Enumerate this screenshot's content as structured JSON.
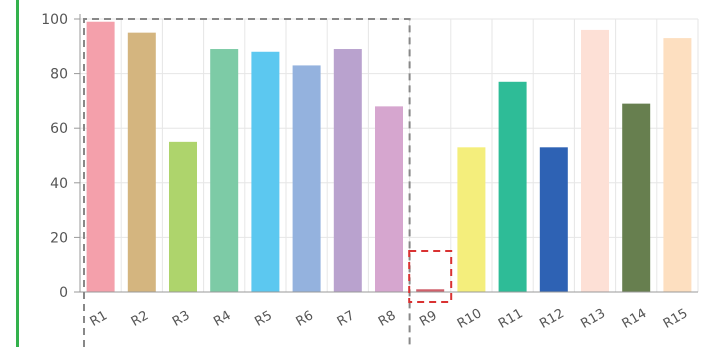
{
  "chart_data": {
    "type": "bar",
    "title": "",
    "xlabel": "",
    "ylabel": "",
    "categories": [
      "R1",
      "R2",
      "R3",
      "R4",
      "R5",
      "R6",
      "R7",
      "R8",
      "R9",
      "R10",
      "R11",
      "R12",
      "R13",
      "R14",
      "R15"
    ],
    "values": [
      99,
      95,
      55,
      89,
      88,
      83,
      89,
      68,
      1,
      53,
      77,
      53,
      96,
      69,
      93
    ],
    "colors": [
      "#F4A0AB",
      "#D4B57F",
      "#AED46C",
      "#7DCBA6",
      "#5CC8F0",
      "#94B2DE",
      "#B9A2CE",
      "#D6A6CF",
      "#D0606A",
      "#F4EE7C",
      "#2EBC97",
      "#2E62B4",
      "#FDE0D6",
      "#677F4F",
      "#FDDFC0"
    ],
    "ylim": [
      0,
      100
    ],
    "yticks": [
      0,
      20,
      40,
      60,
      80,
      100
    ],
    "grid": true,
    "highlights": [
      {
        "style": "dashed",
        "color": "#888888",
        "categories": [
          "R1",
          "R8"
        ]
      },
      {
        "style": "dashed",
        "color": "#D93232",
        "categories": [
          "R9"
        ]
      }
    ]
  },
  "colors": {
    "accent_strip": "#33B14C",
    "grid": "#E6E6E6",
    "axis": "#999999"
  }
}
